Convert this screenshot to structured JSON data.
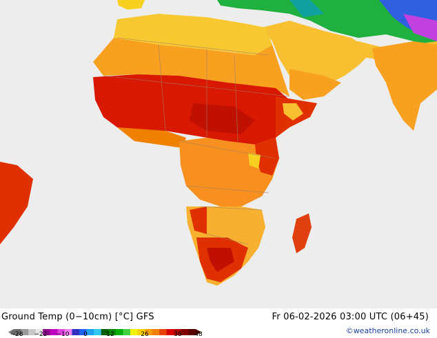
{
  "header": {
    "title": "Ground Temp (0−10cm) [°C] GFS",
    "datetime": "Fr 06-02-2026 03:00 UTC (06+45)"
  },
  "footer": {
    "credit": "©weatheronline.co.uk"
  },
  "legend": {
    "tick_labels": [
      "−28",
      "−22",
      "−10",
      "0",
      "12",
      "26",
      "38",
      "48"
    ],
    "colors": [
      "#6e6e6e",
      "#9b9b9b",
      "#c8c8c8",
      "#e6e6e6",
      "#8e008e",
      "#c000c0",
      "#e040e0",
      "#f080f0",
      "#3030c0",
      "#2060f0",
      "#20a0f0",
      "#30c8f0",
      "#006000",
      "#008800",
      "#00b000",
      "#40d040",
      "#f0f000",
      "#f8d000",
      "#f8a000",
      "#f08000",
      "#e84000",
      "#d80000",
      "#b00000",
      "#800000",
      "#580000"
    ]
  },
  "map": {
    "region": "Africa, Middle East, South Asia",
    "colors": {
      "ocean": "#ededed",
      "orange": "#f8a020",
      "light_orange": "#f8b830",
      "yellow": "#f8d020",
      "red": "#e02000",
      "dark_red": "#c01000",
      "green": "#20b040",
      "blue": "#3060e0",
      "border": "#a08060"
    }
  }
}
